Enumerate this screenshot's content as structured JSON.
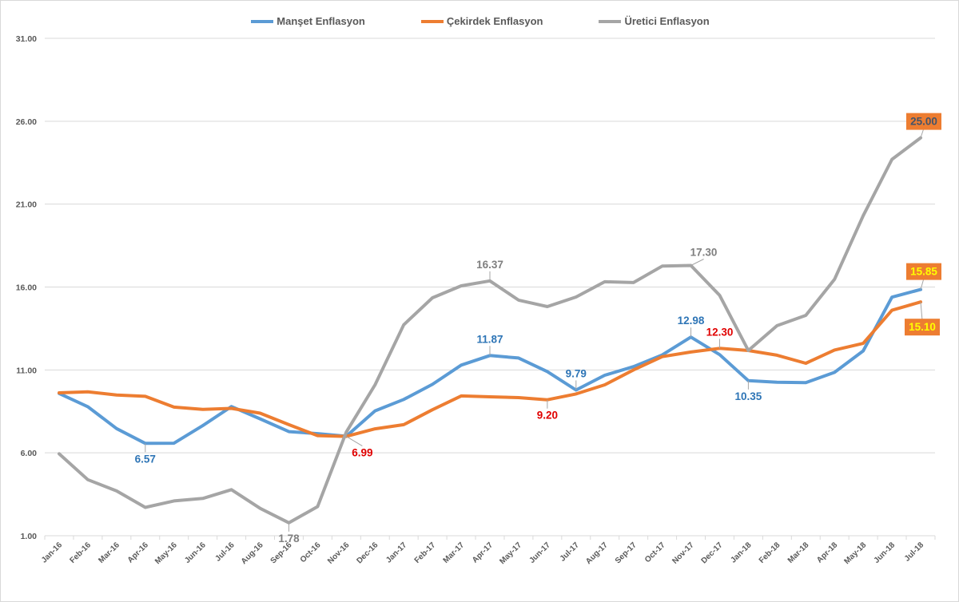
{
  "chart_data": {
    "type": "line",
    "title": "",
    "xlabel": "",
    "ylabel": "",
    "ylim": [
      1,
      31
    ],
    "yticks": [
      1,
      6,
      11,
      16,
      21,
      26,
      31
    ],
    "ytick_labels": [
      "1.00",
      "6.00",
      "11.00",
      "16.00",
      "21.00",
      "26.00",
      "31.00"
    ],
    "grid": true,
    "legend_position": "top-center",
    "categories": [
      "Jan-16",
      "Feb-16",
      "Mar-16",
      "Apr-16",
      "May-16",
      "Jun-16",
      "Jul-16",
      "Aug-16",
      "Sep-16",
      "Oct-16",
      "Nov-16",
      "Dec-16",
      "Jan-17",
      "Feb-17",
      "Mar-17",
      "Apr-17",
      "May-17",
      "Jun-17",
      "Jul-17",
      "Aug-17",
      "Sep-17",
      "Oct-17",
      "Nov-17",
      "Dec-17",
      "Jan-18",
      "Feb-18",
      "Mar-18",
      "Apr-18",
      "May-18",
      "Jun-18",
      "Jul-18"
    ],
    "series": [
      {
        "name": "Manşet Enflasyon",
        "color": "#5b9bd5",
        "values": [
          9.58,
          8.78,
          7.46,
          6.57,
          6.58,
          7.64,
          8.79,
          8.05,
          7.28,
          7.16,
          7.0,
          8.53,
          9.22,
          10.13,
          11.29,
          11.87,
          11.72,
          10.9,
          9.79,
          10.68,
          11.2,
          11.9,
          12.98,
          11.92,
          10.35,
          10.26,
          10.23,
          10.85,
          12.15,
          15.39,
          15.85
        ]
      },
      {
        "name": "Çekirdek Enflasyon",
        "color": "#ed7d31",
        "values": [
          9.62,
          9.68,
          9.49,
          9.41,
          8.76,
          8.62,
          8.68,
          8.39,
          7.7,
          7.04,
          6.99,
          7.45,
          7.7,
          8.6,
          9.43,
          9.38,
          9.33,
          9.2,
          9.55,
          10.1,
          11.0,
          11.8,
          12.08,
          12.3,
          12.17,
          11.89,
          11.4,
          12.2,
          12.6,
          14.6,
          15.1
        ]
      },
      {
        "name": "Üretici Enflasyon",
        "color": "#a5a5a5",
        "values": [
          5.94,
          4.38,
          3.7,
          2.71,
          3.1,
          3.25,
          3.78,
          2.65,
          1.78,
          2.76,
          7.25,
          10.1,
          13.72,
          15.35,
          16.07,
          16.37,
          15.21,
          14.82,
          15.4,
          16.32,
          16.27,
          17.26,
          17.3,
          15.5,
          12.17,
          13.67,
          14.29,
          16.46,
          20.3,
          23.7,
          25.0
        ]
      }
    ],
    "data_labels": [
      {
        "series": 0,
        "index": 3,
        "text": "6.57",
        "color": "#2e75b6",
        "pos": "below"
      },
      {
        "series": 1,
        "index": 10,
        "text": "6.99",
        "color": "#e00000",
        "pos": "below-right"
      },
      {
        "series": 2,
        "index": 8,
        "text": "1.78",
        "color": "#7f7f7f",
        "pos": "below"
      },
      {
        "series": 2,
        "index": 15,
        "text": "16.37",
        "color": "#7f7f7f",
        "pos": "above"
      },
      {
        "series": 0,
        "index": 15,
        "text": "11.87",
        "color": "#2e75b6",
        "pos": "above"
      },
      {
        "series": 1,
        "index": 17,
        "text": "9.20",
        "color": "#e00000",
        "pos": "below"
      },
      {
        "series": 0,
        "index": 18,
        "text": "9.79",
        "color": "#2e75b6",
        "pos": "above"
      },
      {
        "series": 2,
        "index": 22,
        "text": "17.30",
        "color": "#7f7f7f",
        "pos": "above-right"
      },
      {
        "series": 0,
        "index": 22,
        "text": "12.98",
        "color": "#2e75b6",
        "pos": "above"
      },
      {
        "series": 1,
        "index": 23,
        "text": "12.30",
        "color": "#e00000",
        "pos": "above"
      },
      {
        "series": 0,
        "index": 24,
        "text": "10.35",
        "color": "#2e75b6",
        "pos": "below"
      },
      {
        "series": 2,
        "index": 30,
        "text": "25.00",
        "color": "#44546a",
        "bg": "#ed7d31",
        "pos": "above"
      },
      {
        "series": 0,
        "index": 30,
        "text": "15.85",
        "color": "#ffff00",
        "bg": "#ed7d31",
        "pos": "above"
      },
      {
        "series": 1,
        "index": 30,
        "text": "15.10",
        "color": "#ffff00",
        "bg": "#ed7d31",
        "pos": "below"
      }
    ]
  },
  "legend": [
    {
      "label": "Manşet Enflasyon",
      "color": "#5b9bd5"
    },
    {
      "label": "Çekirdek Enflasyon",
      "color": "#ed7d31"
    },
    {
      "label": "Üretici Enflasyon",
      "color": "#a5a5a5"
    }
  ]
}
